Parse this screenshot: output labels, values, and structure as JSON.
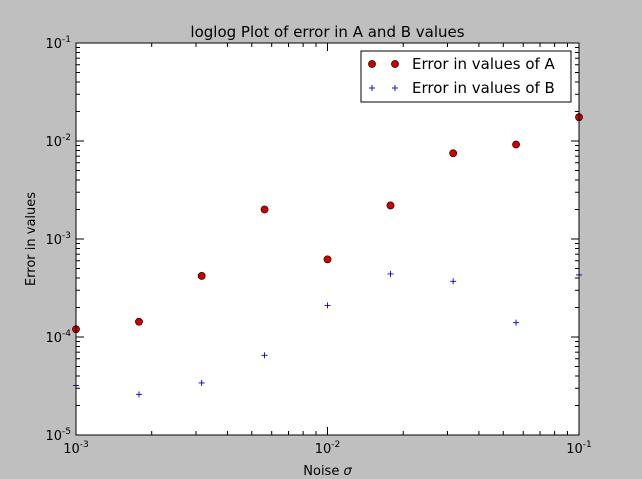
{
  "chart_data": {
    "type": "scatter",
    "title": "loglog Plot of error in A and B values",
    "xlabel": "Noise",
    "xlabel_symbol": "σ",
    "ylabel": "Error in values",
    "xscale": "log",
    "yscale": "log",
    "xlim": [
      0.001,
      0.1
    ],
    "ylim": [
      1e-05,
      0.1
    ],
    "x_ticks": [
      {
        "value": 0.001,
        "base": "10",
        "exp": "-3"
      },
      {
        "value": 0.01,
        "base": "10",
        "exp": "-2"
      },
      {
        "value": 0.1,
        "base": "10",
        "exp": "-1"
      }
    ],
    "y_ticks": [
      {
        "value": 1e-05,
        "base": "10",
        "exp": "-5"
      },
      {
        "value": 0.0001,
        "base": "10",
        "exp": "-4"
      },
      {
        "value": 0.001,
        "base": "10",
        "exp": "-3"
      },
      {
        "value": 0.01,
        "base": "10",
        "exp": "-2"
      },
      {
        "value": 0.1,
        "base": "10",
        "exp": "-1"
      }
    ],
    "legend_position": "top-right",
    "series": [
      {
        "name": "Error in values of A",
        "marker": "circle",
        "color": "#cc0000",
        "points": [
          {
            "x": 0.001,
            "y": 0.00012
          },
          {
            "x": 0.00178,
            "y": 0.000143
          },
          {
            "x": 0.00316,
            "y": 0.00042
          },
          {
            "x": 0.00562,
            "y": 0.002
          },
          {
            "x": 0.01,
            "y": 0.00062
          },
          {
            "x": 0.0178,
            "y": 0.0022
          },
          {
            "x": 0.0316,
            "y": 0.0075
          },
          {
            "x": 0.0562,
            "y": 0.0092
          },
          {
            "x": 0.1,
            "y": 0.0175
          }
        ]
      },
      {
        "name": "Error in values of B",
        "marker": "plus",
        "color": "#0000cc",
        "points": [
          {
            "x": 0.001,
            "y": 3.2e-05
          },
          {
            "x": 0.00178,
            "y": 2.6e-05
          },
          {
            "x": 0.00316,
            "y": 3.4e-05
          },
          {
            "x": 0.00562,
            "y": 6.5e-05
          },
          {
            "x": 0.01,
            "y": 0.00021
          },
          {
            "x": 0.0178,
            "y": 0.00044
          },
          {
            "x": 0.0316,
            "y": 0.00037
          },
          {
            "x": 0.0562,
            "y": 0.00014
          },
          {
            "x": 0.1,
            "y": 0.00043
          }
        ]
      }
    ]
  }
}
